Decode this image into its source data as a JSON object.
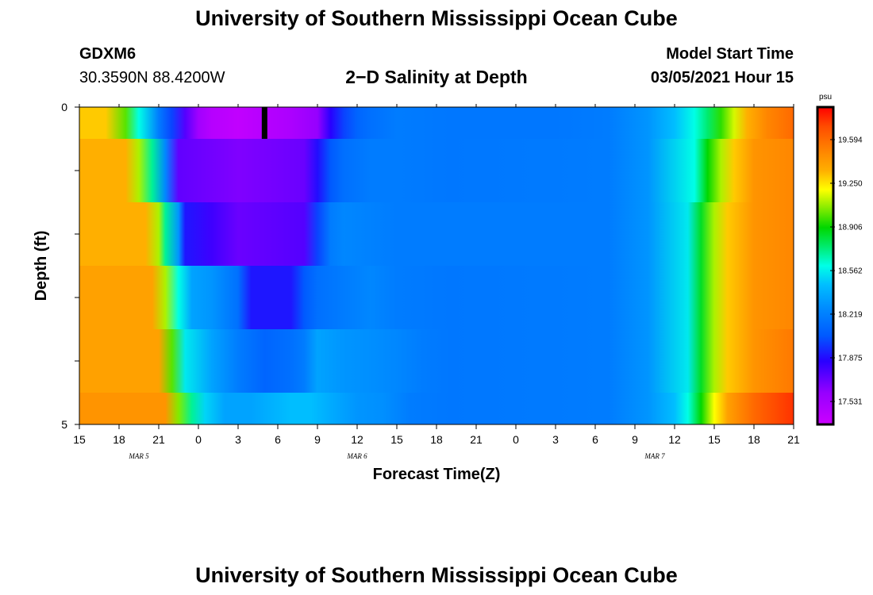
{
  "header": {
    "title": "University of Southern Mississippi Ocean Cube",
    "station": "GDXM6",
    "coords": "30.3590N 88.4200W",
    "chart_title": "2−D Salinity at Depth",
    "model_start_label": "Model Start Time",
    "model_start_value": "03/05/2021 Hour 15"
  },
  "footer": {
    "title": "University of Southern Mississippi Ocean Cube"
  },
  "chart_data": {
    "type": "heatmap",
    "title": "2−D Salinity at Depth",
    "xlabel": "Forecast Time(Z)",
    "ylabel": "Depth (ft)",
    "x_tick_labels": [
      "15",
      "18",
      "21",
      "0",
      "3",
      "6",
      "9",
      "12",
      "15",
      "18",
      "21",
      "0",
      "3",
      "6",
      "9",
      "12",
      "15",
      "18",
      "21"
    ],
    "x_range_hours": [
      0,
      54
    ],
    "date_labels": [
      {
        "text": "MAR 5",
        "hour": 4.5
      },
      {
        "text": "MAR 6",
        "hour": 21
      },
      {
        "text": "MAR 7",
        "hour": 43.5
      }
    ],
    "y_tick_labels": [
      "0",
      "5"
    ],
    "y_range": [
      0,
      5
    ],
    "colorbar": {
      "unit": "psu",
      "min": 17.35,
      "max": 19.85,
      "tick_values": [
        17.531,
        17.875,
        18.219,
        18.562,
        18.906,
        19.25,
        19.594
      ],
      "tick_labels": [
        "17.531",
        "17.875",
        "18.219",
        "18.562",
        "18.906",
        "19.250",
        "19.594"
      ]
    },
    "marker": {
      "hour": 14,
      "depth_start": 0,
      "depth_end": 0.5,
      "color": "#000000"
    },
    "rows": [
      {
        "depth_top": 0.0,
        "depth_bottom": 0.5,
        "hours": [
          0,
          2,
          3.5,
          4.5,
          6,
          7,
          8,
          9,
          10,
          12,
          14,
          16,
          18,
          19,
          20,
          21,
          22,
          24,
          28,
          36,
          40,
          43,
          45,
          46.5,
          47.5,
          48.5,
          49.5,
          50.5,
          52,
          54
        ],
        "values": [
          19.3,
          19.3,
          19.0,
          18.6,
          18.2,
          18.0,
          17.75,
          17.55,
          17.45,
          17.4,
          17.45,
          17.5,
          17.6,
          17.85,
          18.0,
          18.1,
          18.15,
          18.2,
          18.18,
          18.18,
          18.2,
          18.3,
          18.45,
          18.6,
          18.75,
          18.95,
          19.15,
          19.35,
          19.5,
          19.6
        ]
      },
      {
        "depth_top": 0.5,
        "depth_bottom": 1.5,
        "hours": [
          0,
          3.5,
          4.5,
          5.5,
          6.5,
          7.5,
          12,
          17,
          18,
          19,
          20,
          22,
          24,
          28,
          40,
          43,
          46.5,
          47.5,
          48.5,
          49.5,
          51,
          54
        ],
        "values": [
          19.35,
          19.35,
          19.1,
          18.7,
          18.25,
          17.72,
          17.65,
          17.7,
          17.88,
          18.05,
          18.15,
          18.2,
          18.2,
          18.18,
          18.2,
          18.3,
          18.6,
          18.9,
          19.1,
          19.3,
          19.45,
          19.5
        ]
      },
      {
        "depth_top": 1.5,
        "depth_bottom": 2.5,
        "hours": [
          0,
          5,
          6,
          6.5,
          7.5,
          8,
          10,
          12,
          17,
          18,
          19,
          20,
          24,
          40,
          43,
          46,
          47,
          48,
          49,
          51,
          54
        ],
        "values": [
          19.35,
          19.35,
          19.1,
          18.7,
          18.3,
          17.9,
          17.8,
          17.7,
          17.75,
          18.0,
          18.2,
          18.25,
          18.2,
          18.2,
          18.3,
          18.55,
          18.85,
          19.1,
          19.3,
          19.45,
          19.5
        ]
      },
      {
        "depth_top": 2.5,
        "depth_bottom": 3.5,
        "hours": [
          0,
          5.5,
          6.5,
          7.5,
          8.5,
          10,
          12,
          13,
          16,
          17,
          18,
          20,
          22,
          24,
          28,
          40,
          43,
          46,
          47,
          48,
          49,
          51,
          54
        ],
        "values": [
          19.4,
          19.4,
          19.1,
          18.6,
          18.35,
          18.3,
          18.15,
          17.9,
          17.9,
          18.05,
          18.15,
          18.2,
          18.25,
          18.2,
          18.18,
          18.2,
          18.3,
          18.55,
          18.85,
          19.1,
          19.3,
          19.45,
          19.5
        ]
      },
      {
        "depth_top": 3.5,
        "depth_bottom": 4.5,
        "hours": [
          0,
          6,
          7,
          8,
          10,
          12,
          14,
          16,
          17,
          18,
          20,
          22,
          24,
          26,
          28,
          40,
          43,
          46,
          47,
          48,
          49,
          51,
          54
        ],
        "values": [
          19.4,
          19.4,
          19.0,
          18.55,
          18.35,
          18.2,
          18.1,
          18.15,
          18.2,
          18.35,
          18.3,
          18.28,
          18.25,
          18.2,
          18.18,
          18.2,
          18.3,
          18.55,
          18.85,
          19.1,
          19.3,
          19.45,
          19.55
        ]
      },
      {
        "depth_top": 4.5,
        "depth_bottom": 5.0,
        "hours": [
          0,
          6.5,
          7.5,
          8.5,
          9.5,
          11,
          13,
          16,
          17.5,
          19,
          21,
          23,
          25,
          28,
          40,
          43,
          45,
          46,
          47,
          48,
          49,
          51,
          54
        ],
        "values": [
          19.45,
          19.45,
          19.05,
          18.7,
          18.5,
          18.35,
          18.35,
          18.45,
          18.45,
          18.38,
          18.3,
          18.28,
          18.2,
          18.18,
          18.2,
          18.3,
          18.45,
          18.6,
          18.9,
          19.2,
          19.4,
          19.6,
          19.75
        ]
      }
    ]
  }
}
